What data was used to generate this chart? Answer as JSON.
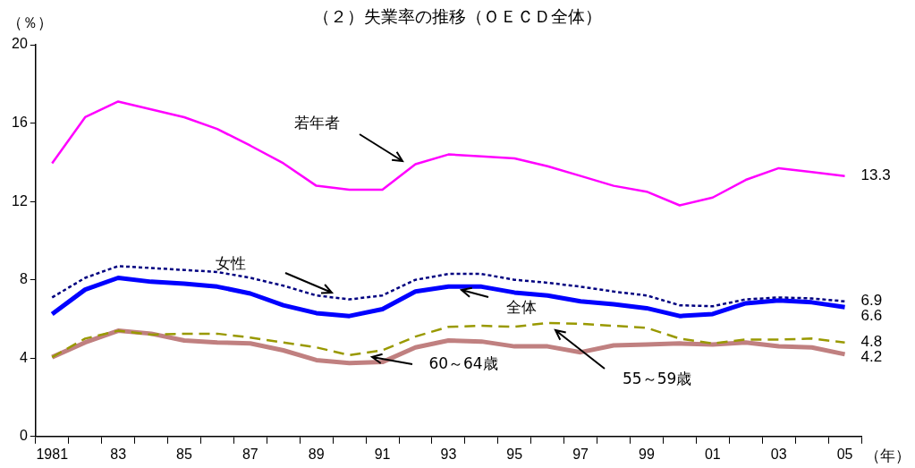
{
  "chart_data": {
    "type": "line",
    "title": "（２）失業率の推移（ＯＥＣＤ全体）",
    "ylabel": "（％）",
    "xlabel": "（年）",
    "categories": [
      "1981",
      null,
      "83",
      null,
      "85",
      null,
      "87",
      null,
      "89",
      null,
      "91",
      null,
      "93",
      null,
      "95",
      null,
      "97",
      null,
      "99",
      null,
      "01",
      null,
      "03",
      null,
      "05"
    ],
    "ylim": [
      0,
      20
    ],
    "yticks": [
      0,
      4,
      8,
      12,
      16,
      20
    ],
    "grid": false,
    "legend": false,
    "marker": "none",
    "series": [
      {
        "name": "若年者",
        "color": "#ff00ff",
        "line_style": "solid",
        "values": [
          13.95,
          16.3,
          17.1,
          16.7,
          16.3,
          15.7,
          14.85,
          13.95,
          12.8,
          12.6,
          12.6,
          13.9,
          14.4,
          14.3,
          14.2,
          13.8,
          13.3,
          12.8,
          12.5,
          11.8,
          12.2,
          13.1,
          13.7,
          13.5,
          13.3
        ],
        "value_labels": [
          null,
          null,
          null,
          null,
          null,
          null,
          null,
          null,
          null,
          null,
          null,
          null,
          null,
          null,
          null,
          null,
          null,
          null,
          null,
          null,
          null,
          null,
          null,
          null,
          "13.3"
        ]
      },
      {
        "name": "女性",
        "color": "#000080",
        "line_style": "dotted",
        "values": [
          7.1,
          8.1,
          8.7,
          8.6,
          8.5,
          8.4,
          8.1,
          7.7,
          7.2,
          7.0,
          7.2,
          8.0,
          8.3,
          8.3,
          8.0,
          7.85,
          7.65,
          7.4,
          7.2,
          6.7,
          6.65,
          7.0,
          7.1,
          7.05,
          6.9
        ],
        "value_labels": [
          null,
          null,
          null,
          null,
          null,
          null,
          null,
          null,
          null,
          null,
          null,
          null,
          null,
          null,
          null,
          null,
          null,
          null,
          null,
          null,
          null,
          null,
          null,
          null,
          "6.9"
        ]
      },
      {
        "name": "全体",
        "color": "#0000ff",
        "line_style": "solid",
        "values": [
          6.25,
          7.5,
          8.1,
          7.9,
          7.8,
          7.65,
          7.3,
          6.7,
          6.3,
          6.15,
          6.5,
          7.4,
          7.65,
          7.65,
          7.35,
          7.2,
          6.9,
          6.75,
          6.55,
          6.15,
          6.25,
          6.8,
          6.95,
          6.85,
          6.6
        ],
        "value_labels": [
          null,
          null,
          null,
          null,
          null,
          null,
          null,
          null,
          null,
          null,
          null,
          null,
          null,
          null,
          null,
          null,
          null,
          null,
          null,
          null,
          null,
          null,
          null,
          null,
          "6.6"
        ]
      },
      {
        "name": "55～59歳",
        "color": "#999900",
        "line_style": "dashed",
        "values": [
          4.05,
          5.0,
          5.4,
          5.2,
          5.25,
          5.25,
          5.05,
          4.8,
          4.55,
          4.15,
          4.4,
          5.1,
          5.6,
          5.65,
          5.6,
          5.8,
          5.75,
          5.65,
          5.55,
          5.0,
          4.75,
          4.95,
          4.95,
          5.0,
          4.8
        ],
        "value_labels": [
          null,
          null,
          null,
          null,
          null,
          null,
          null,
          null,
          null,
          null,
          null,
          null,
          null,
          null,
          null,
          null,
          null,
          null,
          null,
          null,
          null,
          null,
          null,
          null,
          "4.8"
        ]
      },
      {
        "name": "60～64歳",
        "color": "#c08080",
        "line_style": "solid",
        "values": [
          4.05,
          4.8,
          5.4,
          5.25,
          4.9,
          4.8,
          4.75,
          4.4,
          3.9,
          3.75,
          3.8,
          4.55,
          4.9,
          4.85,
          4.6,
          4.6,
          4.3,
          4.65,
          4.7,
          4.75,
          4.7,
          4.8,
          4.6,
          4.55,
          4.2
        ],
        "value_labels": [
          null,
          null,
          null,
          null,
          null,
          null,
          null,
          null,
          null,
          null,
          null,
          null,
          null,
          null,
          null,
          null,
          null,
          null,
          null,
          null,
          null,
          null,
          null,
          null,
          "4.2"
        ]
      }
    ]
  }
}
